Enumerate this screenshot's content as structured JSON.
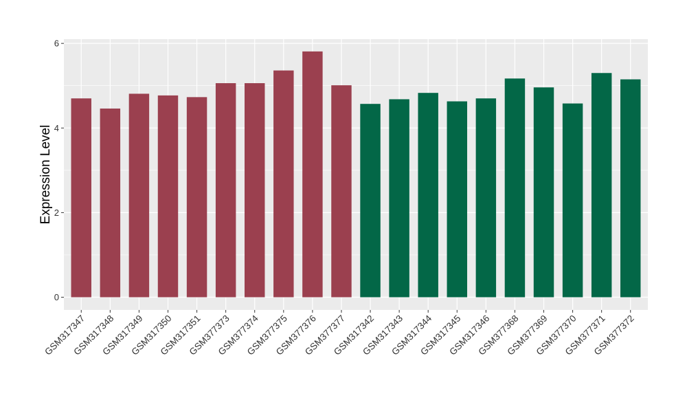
{
  "chart_data": {
    "type": "bar",
    "ylabel": "Expression Level",
    "ylim": [
      -0.3,
      6.1
    ],
    "yticks": [
      0,
      2,
      4,
      6
    ],
    "grid": true,
    "categories": [
      "GSM317347",
      "GSM317348",
      "GSM317349",
      "GSM317350",
      "GSM317351",
      "GSM377373",
      "GSM377374",
      "GSM377375",
      "GSM377376",
      "GSM377377",
      "GSM317342",
      "GSM317343",
      "GSM317344",
      "GSM317345",
      "GSM317346",
      "GSM377368",
      "GSM377369",
      "GSM377370",
      "GSM377371",
      "GSM377372"
    ],
    "values": [
      4.7,
      4.46,
      4.81,
      4.77,
      4.73,
      5.06,
      5.06,
      5.36,
      5.81,
      5.01,
      4.57,
      4.68,
      4.83,
      4.63,
      4.7,
      5.17,
      4.96,
      4.58,
      5.3,
      5.15
    ],
    "bar_colors": [
      "#9b404f",
      "#9b404f",
      "#9b404f",
      "#9b404f",
      "#9b404f",
      "#9b404f",
      "#9b404f",
      "#9b404f",
      "#9b404f",
      "#9b404f",
      "#036747",
      "#036747",
      "#036747",
      "#036747",
      "#036747",
      "#036747",
      "#036747",
      "#036747",
      "#036747",
      "#036747"
    ],
    "panel_background": "#ebebeb",
    "gridline_color": "#ffffff"
  }
}
